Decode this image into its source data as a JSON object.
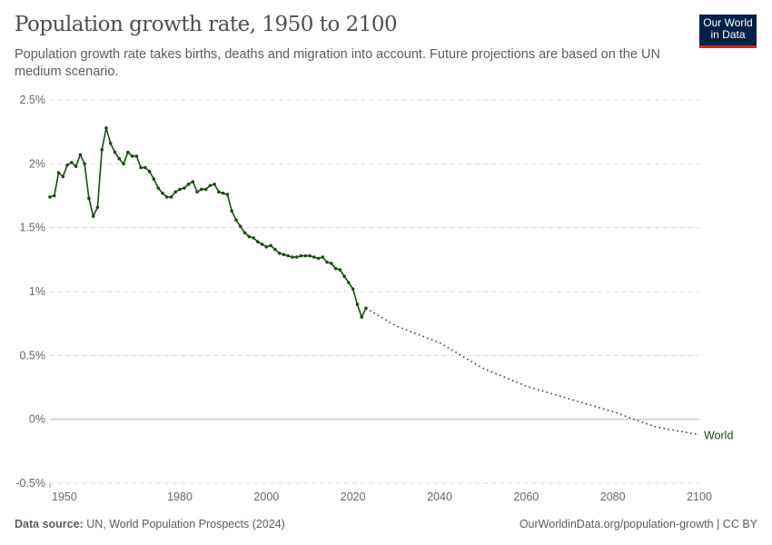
{
  "header": {
    "title": "Population growth rate, 1950 to 2100",
    "subtitle": "Population growth rate takes births, deaths and migration into account. Future projections are based on the UN medium scenario.",
    "logo_text": "Our World in Data"
  },
  "footer": {
    "source_label": "Data source:",
    "source": "UN, World Population Prospects (2024)",
    "link": "OurWorldinData.org/population-growth | CC BY"
  },
  "chart_data": {
    "type": "line",
    "title": "Population growth rate, 1950 to 2100",
    "xlim": [
      1950,
      2100
    ],
    "ylim": [
      -0.5,
      2.5
    ],
    "x_ticks": [
      "1950",
      "1980",
      "2000",
      "2020",
      "2040",
      "2060",
      "2080",
      "2100"
    ],
    "y_ticks": [
      "-0.5%",
      "0%",
      "0.5%",
      "1%",
      "1.5%",
      "2%",
      "2.5%"
    ],
    "grid": true,
    "colors": {
      "series": "#1d4a14",
      "grid": "#dddddd",
      "zero": "#cccccc"
    },
    "series": [
      {
        "name": "World",
        "estimates": {
          "x": [
            1950,
            1951,
            1952,
            1953,
            1954,
            1955,
            1956,
            1957,
            1958,
            1959,
            1960,
            1961,
            1962,
            1963,
            1964,
            1965,
            1966,
            1967,
            1968,
            1969,
            1970,
            1971,
            1972,
            1973,
            1974,
            1975,
            1976,
            1977,
            1978,
            1979,
            1980,
            1981,
            1982,
            1983,
            1984,
            1985,
            1986,
            1987,
            1988,
            1989,
            1990,
            1991,
            1992,
            1993,
            1994,
            1995,
            1996,
            1997,
            1998,
            1999,
            2000,
            2001,
            2002,
            2003,
            2004,
            2005,
            2006,
            2007,
            2008,
            2009,
            2010,
            2011,
            2012,
            2013,
            2014,
            2015,
            2016,
            2017,
            2018,
            2019,
            2020,
            2021,
            2022,
            2023
          ],
          "y": [
            1.74,
            1.75,
            1.93,
            1.9,
            1.99,
            2.01,
            1.98,
            2.07,
            2.0,
            1.73,
            1.59,
            1.66,
            2.11,
            2.28,
            2.16,
            2.09,
            2.04,
            2.0,
            2.09,
            2.06,
            2.06,
            1.97,
            1.97,
            1.94,
            1.88,
            1.81,
            1.77,
            1.74,
            1.74,
            1.78,
            1.8,
            1.81,
            1.84,
            1.86,
            1.78,
            1.8,
            1.8,
            1.83,
            1.84,
            1.78,
            1.77,
            1.76,
            1.63,
            1.56,
            1.51,
            1.46,
            1.43,
            1.42,
            1.39,
            1.37,
            1.35,
            1.36,
            1.33,
            1.3,
            1.29,
            1.28,
            1.27,
            1.27,
            1.28,
            1.28,
            1.28,
            1.27,
            1.26,
            1.27,
            1.23,
            1.22,
            1.18,
            1.17,
            1.12,
            1.07,
            1.02,
            0.9,
            0.8,
            0.87
          ]
        },
        "projections": {
          "x": [
            2023,
            2030,
            2040,
            2050,
            2060,
            2070,
            2080,
            2090,
            2100
          ],
          "y": [
            0.87,
            0.73,
            0.6,
            0.4,
            0.26,
            0.16,
            0.06,
            -0.06,
            -0.12
          ]
        }
      }
    ]
  }
}
